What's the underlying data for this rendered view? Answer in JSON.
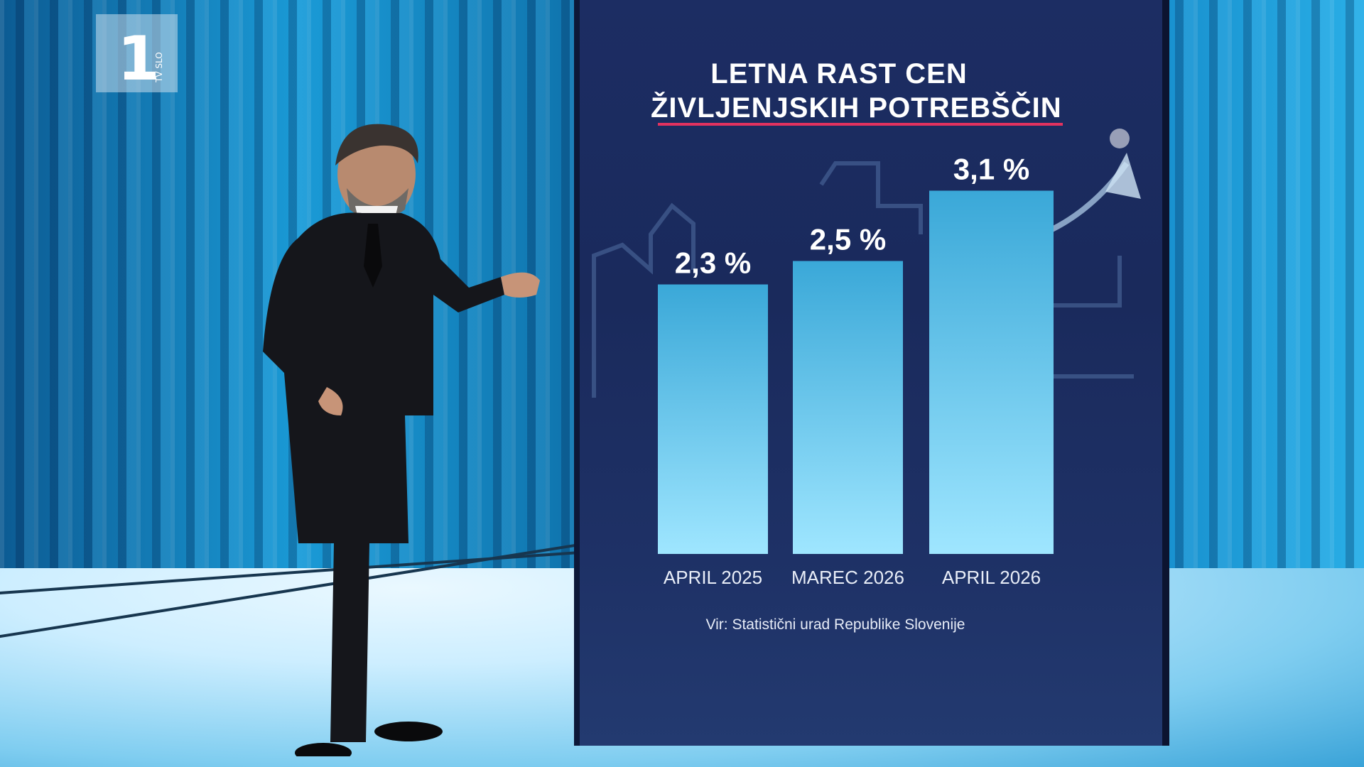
{
  "channel": {
    "number": "1",
    "name": "TV SLO"
  },
  "chart_data": {
    "type": "bar",
    "title_lines": [
      "LETNA RAST CEN",
      "ŽIVLJENJSKIH POTREBŠČIN"
    ],
    "categories": [
      "APRIL 2025",
      "MAREC 2026",
      "APRIL 2026"
    ],
    "values": [
      2.3,
      2.5,
      3.1
    ],
    "value_labels": [
      "2,3 %",
      "2,5 %",
      "3,1 %"
    ],
    "source": "Vir: Statistični urad Republike Slovenije",
    "ylim": [
      0,
      3.5
    ]
  },
  "colors": {
    "accent_line": "#e2325f",
    "bar_top": "#3aa8d8",
    "bar_bottom": "#9fe6ff"
  }
}
